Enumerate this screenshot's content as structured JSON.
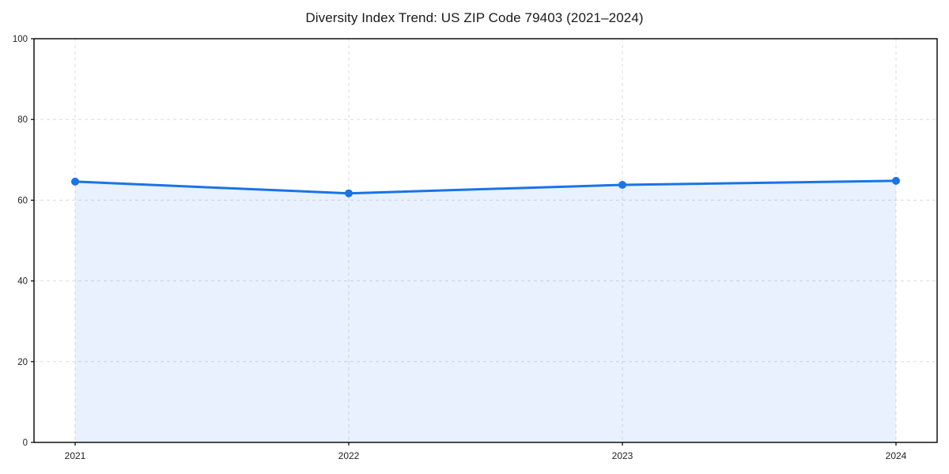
{
  "chart_data": {
    "type": "area",
    "title": "Diversity Index Trend: US ZIP Code 79403 (2021–2024)",
    "x": [
      "2021",
      "2022",
      "2023",
      "2024"
    ],
    "series": [
      {
        "name": "Diversity Index",
        "values": [
          64.6,
          61.7,
          63.8,
          64.8
        ]
      }
    ],
    "xlabel": "",
    "ylabel": "",
    "ylim": [
      0,
      100
    ],
    "yticks": [
      0,
      20,
      40,
      60,
      80,
      100
    ],
    "grid": true,
    "grid_style": "dashed",
    "legend_position": "none",
    "colors": {
      "line": "#1a73e8",
      "marker": "#1a73e8",
      "fill": "#1a73e8",
      "fill_opacity": 0.1,
      "grid": "#dcdcdc",
      "axis": "#000000",
      "background": "#ffffff",
      "title_text": "#1a1a1a",
      "tick_text": "#222222"
    }
  }
}
